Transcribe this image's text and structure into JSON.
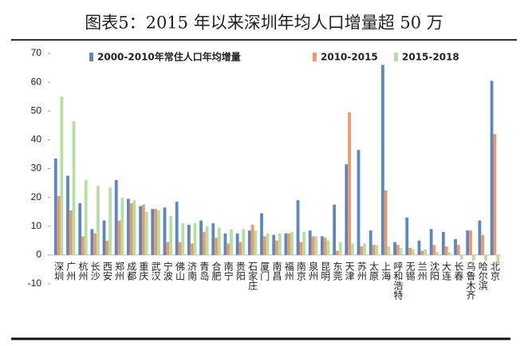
{
  "chart_data": {
    "type": "bar",
    "title": "图表5：2015 年以来深圳年均人口增量超 50 万",
    "categories": [
      "深圳",
      "广州",
      "杭州",
      "长沙",
      "西安",
      "郑州",
      "成都",
      "重庆",
      "武汉",
      "宁波",
      "佛山",
      "济南",
      "青岛",
      "合肥",
      "南宁",
      "贵阳",
      "石家庄",
      "厦门",
      "南昌",
      "福州",
      "南京",
      "泉州",
      "昆明",
      "东莞",
      "天津",
      "苏州",
      "太原",
      "上海",
      "呼和浩特",
      "无锡",
      "兰州",
      "沈阳",
      "大连",
      "长春",
      "乌鲁木齐",
      "哈尔滨",
      "北京"
    ],
    "series": [
      {
        "name": "2000-2010年常住人口年均增量",
        "color": "#5b87c5",
        "values": [
          33.5,
          27.5,
          18,
          9,
          12,
          26,
          19.5,
          17,
          16,
          16.5,
          18.5,
          10.5,
          12,
          11,
          7.5,
          7.5,
          8.5,
          14.5,
          7,
          7.5,
          19,
          8.5,
          6.5,
          17.5,
          31.5,
          36.5,
          8.5,
          66,
          4.5,
          13,
          5,
          9,
          8,
          5.5,
          8.5,
          12,
          60.5
        ]
      },
      {
        "name": "2010-2015",
        "color": "#ee9a66",
        "values": [
          20.5,
          15.5,
          6.5,
          7.5,
          5,
          12,
          18,
          17.5,
          16,
          4.5,
          4.5,
          4,
          8,
          6,
          4,
          4.5,
          10.5,
          6.5,
          5,
          7.5,
          4.5,
          6.5,
          6,
          1.5,
          49.5,
          3,
          3.5,
          22.5,
          3.5,
          2.5,
          1.5,
          3.5,
          3,
          3.5,
          8.5,
          7,
          42
        ]
      },
      {
        "name": "2015-2018",
        "color": "#b6e0a2",
        "values": [
          55,
          46.5,
          26,
          24,
          23.5,
          20,
          19,
          15,
          15.5,
          13.5,
          11,
          11,
          10,
          9.5,
          9,
          9,
          8.5,
          7.5,
          7.5,
          8,
          8,
          6.5,
          5,
          4.5,
          4,
          4,
          3.5,
          3,
          2.5,
          2,
          2,
          1,
          1,
          -1.5,
          -2,
          -2,
          -3
        ]
      }
    ],
    "ylim": [
      -10,
      70
    ],
    "yticks": [
      -10,
      0,
      10,
      20,
      30,
      40,
      50,
      60,
      70
    ]
  }
}
